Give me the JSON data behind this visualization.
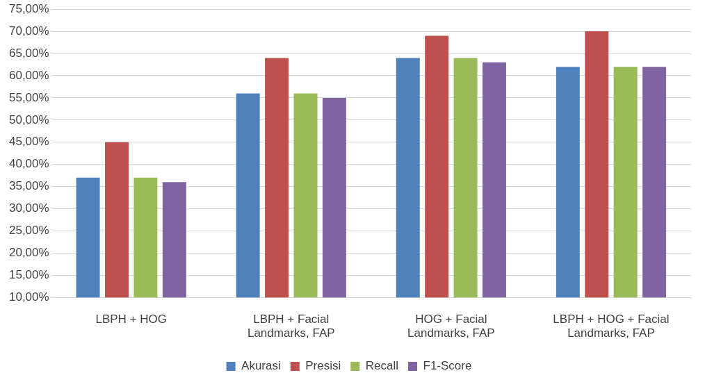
{
  "chart_data": {
    "type": "bar",
    "categories": [
      "LBPH + HOG",
      "LBPH + Facial Landmarks, FAP",
      "HOG + Facial Landmarks, FAP",
      "LBPH + HOG + Facial Landmarks, FAP"
    ],
    "series": [
      {
        "name": "Akurasi",
        "color": "#4f81bd",
        "values": [
          37,
          56,
          64,
          62
        ]
      },
      {
        "name": "Presisi",
        "color": "#c0504d",
        "values": [
          45,
          64,
          69,
          70
        ]
      },
      {
        "name": "Recall",
        "color": "#9bbb59",
        "values": [
          37,
          56,
          64,
          62
        ]
      },
      {
        "name": "F1-Score",
        "color": "#8064a2",
        "values": [
          36,
          55,
          63,
          62
        ]
      }
    ],
    "ylim": [
      10,
      75
    ],
    "yticks": [
      {
        "value": 10,
        "label": "10,00%"
      },
      {
        "value": 15,
        "label": "15,00%"
      },
      {
        "value": 20,
        "label": "20,00%"
      },
      {
        "value": 25,
        "label": "25,00%"
      },
      {
        "value": 30,
        "label": "30,00%"
      },
      {
        "value": 35,
        "label": "35,00%"
      },
      {
        "value": 40,
        "label": "40,00%"
      },
      {
        "value": 45,
        "label": "45,00%"
      },
      {
        "value": 50,
        "label": "50,00%"
      },
      {
        "value": 55,
        "label": "55,00%"
      },
      {
        "value": 60,
        "label": "60,00%"
      },
      {
        "value": 65,
        "label": "65,00%"
      },
      {
        "value": 70,
        "label": "70,00%"
      },
      {
        "value": 75,
        "label": "75,00%"
      }
    ],
    "grid": "y",
    "legend": "bottom"
  }
}
